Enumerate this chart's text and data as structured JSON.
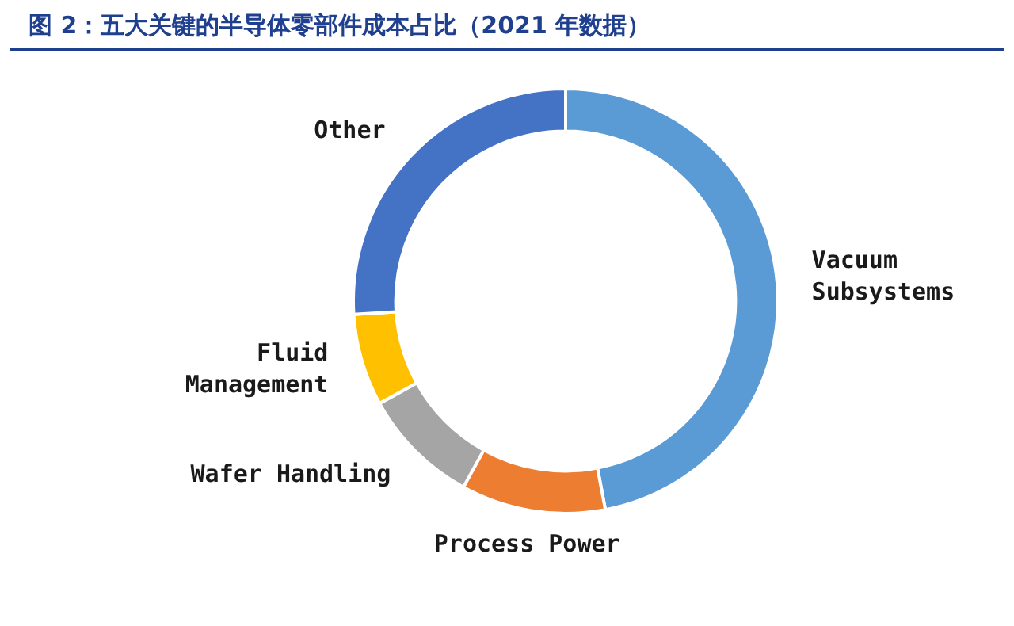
{
  "chart_data": {
    "type": "donut",
    "title": "图 2：五大关键的半导体零部件成本占比（2021 年数据）",
    "categories": [
      "Vacuum Subsystems",
      "Process Power",
      "Wafer Handling",
      "Fluid Management",
      "Other"
    ],
    "values": [
      47,
      11,
      9,
      7,
      26
    ],
    "colors": [
      "#5b9bd5",
      "#ed7d31",
      "#a5a5a5",
      "#ffc000",
      "#4472c4"
    ],
    "legend": false
  }
}
